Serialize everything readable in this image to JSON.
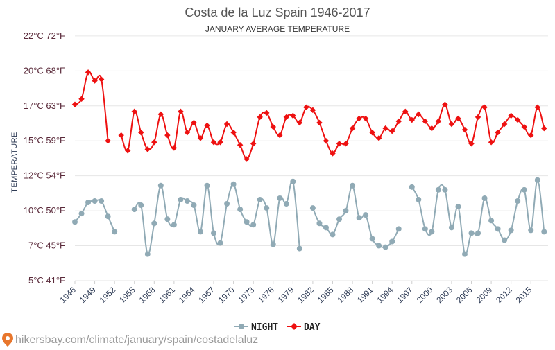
{
  "chart_data": {
    "type": "line",
    "title": "Costa de la Luz Spain 1946-2017",
    "subtitle": "JANUARY AVERAGE TEMPERATURE",
    "ylabel": "TEMPERATURE",
    "ylim": [
      5,
      22
    ],
    "grid": true,
    "legend_position": "bottom-center",
    "y_ticks": [
      {
        "value": 5,
        "label": "5°C 41°F"
      },
      {
        "value": 7.5,
        "label": "7°C 45°F"
      },
      {
        "value": 10,
        "label": "10°C 50°F"
      },
      {
        "value": 12.5,
        "label": "12°C 54°F"
      },
      {
        "value": 15,
        "label": "15°C 59°F"
      },
      {
        "value": 17.5,
        "label": "17°C 63°F"
      },
      {
        "value": 20,
        "label": "20°C 68°F"
      },
      {
        "value": 22.5,
        "label": "22°C 72°F"
      }
    ],
    "x_ticks": [
      1946,
      1949,
      1952,
      1955,
      1958,
      1961,
      1964,
      1967,
      1970,
      1973,
      1976,
      1979,
      1982,
      1985,
      1988,
      1991,
      1994,
      1997,
      2000,
      2003,
      2006,
      2009,
      2012,
      2015
    ],
    "x": [
      1946,
      1947,
      1948,
      1949,
      1950,
      1951,
      1952,
      1953,
      1954,
      1955,
      1956,
      1957,
      1958,
      1959,
      1960,
      1961,
      1962,
      1963,
      1964,
      1965,
      1966,
      1967,
      1968,
      1969,
      1970,
      1971,
      1972,
      1973,
      1974,
      1975,
      1976,
      1977,
      1978,
      1979,
      1980,
      1981,
      1982,
      1983,
      1984,
      1985,
      1986,
      1987,
      1988,
      1989,
      1990,
      1991,
      1992,
      1993,
      1994,
      1995,
      1996,
      1997,
      1998,
      1999,
      2000,
      2001,
      2002,
      2003,
      2004,
      2005,
      2006,
      2007,
      2008,
      2009,
      2010,
      2011,
      2012,
      2013,
      2014,
      2015,
      2016,
      2017
    ],
    "series": [
      {
        "name": "NIGHT",
        "color": "#90aab5",
        "values": [
          9.2,
          9.8,
          10.6,
          10.7,
          10.7,
          9.6,
          8.5,
          null,
          null,
          10.1,
          10.4,
          6.9,
          9.1,
          11.8,
          9.4,
          9.0,
          10.8,
          10.7,
          10.4,
          8.5,
          11.8,
          8.4,
          7.7,
          10.5,
          11.9,
          10.1,
          9.2,
          9.0,
          10.8,
          10.2,
          7.6,
          10.9,
          10.5,
          12.1,
          7.3,
          null,
          10.2,
          9.1,
          8.8,
          8.3,
          9.4,
          10.0,
          11.8,
          9.5,
          9.7,
          8.0,
          7.5,
          7.4,
          7.8,
          8.7,
          null,
          11.7,
          10.8,
          8.7,
          8.5,
          11.5,
          11.5,
          8.8,
          10.3,
          6.9,
          8.4,
          8.4,
          10.9,
          9.3,
          8.7,
          7.9,
          8.6,
          10.7,
          11.5,
          8.6,
          12.2,
          8.5
        ]
      },
      {
        "name": "DAY",
        "color": "#ee1111",
        "values": [
          17.6,
          18.0,
          19.9,
          19.3,
          19.4,
          15.0,
          null,
          15.4,
          14.3,
          17.1,
          15.6,
          14.4,
          14.9,
          16.9,
          15.4,
          14.5,
          17.1,
          15.6,
          16.3,
          15.2,
          16.1,
          14.9,
          14.9,
          16.2,
          15.6,
          14.7,
          13.7,
          14.8,
          16.7,
          17.0,
          16.0,
          15.4,
          16.7,
          16.8,
          16.3,
          17.4,
          17.2,
          16.3,
          15.0,
          14.1,
          14.8,
          14.8,
          15.9,
          16.6,
          16.6,
          15.6,
          15.2,
          15.9,
          15.7,
          16.4,
          17.1,
          16.5,
          16.9,
          16.4,
          15.9,
          16.4,
          17.6,
          16.2,
          16.6,
          15.8,
          14.8,
          16.7,
          17.4,
          14.9,
          15.6,
          16.2,
          16.8,
          16.5,
          16.0,
          15.4,
          17.4,
          15.9
        ]
      }
    ]
  },
  "legend": {
    "night_label": "NIGHT",
    "day_label": "DAY"
  },
  "watermark": {
    "icon": "map-pin-icon",
    "text": "hikersbay.com/climate/january/spain/costadelaluz"
  }
}
